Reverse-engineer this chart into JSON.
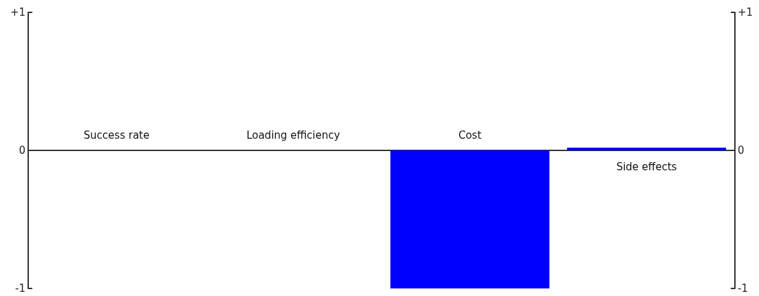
{
  "chart_data": {
    "type": "bar",
    "categories": [
      "Success rate",
      "Loading efficiency",
      "Cost",
      "Side effects"
    ],
    "values": [
      0,
      0,
      -1,
      0.02
    ],
    "color": "#0000ff",
    "ylim": [
      -1,
      1
    ],
    "yticks": [
      {
        "value": -1,
        "label": "-1"
      },
      0,
      {
        "value": 1,
        "label": "+1"
      }
    ],
    "y2lim": [
      -1,
      1
    ],
    "y2ticks": [
      {
        "value": -1,
        "label": "-1"
      },
      0,
      {
        "value": 1,
        "label": "+1"
      }
    ],
    "data_labels": false
  }
}
